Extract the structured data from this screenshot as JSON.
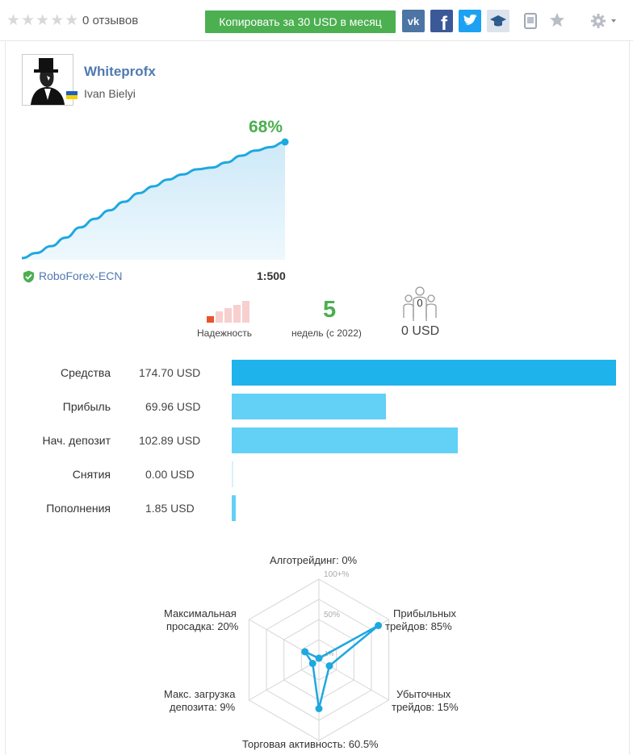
{
  "header": {
    "rating_stars": 5,
    "reviews_label": "0 отзывов",
    "copy_button": "Копировать за 30 USD в месяц",
    "social": [
      {
        "icon": "vk-icon",
        "label": "vk",
        "color": "#4c75a3"
      },
      {
        "icon": "facebook-icon",
        "label": "f",
        "color": "#3b5998"
      },
      {
        "icon": "twitter-icon",
        "label": "t",
        "color": "#1da1f2"
      }
    ]
  },
  "profile": {
    "username": "Whiteprofx",
    "real_name": "Ivan Bielyi",
    "country_flag": "ukraine-flag"
  },
  "growth": {
    "gain": "68%",
    "values": [
      0,
      3,
      7,
      12,
      18,
      23,
      28,
      33,
      38,
      42,
      46,
      49,
      52,
      53,
      56,
      60,
      63,
      65,
      68
    ],
    "broker": "RoboForex-ECN",
    "leverage": "1:500",
    "line_color": "#1ea8e0"
  },
  "stats": {
    "reliability_label": "Надежность",
    "reliability_level": 1,
    "weeks_value": "5",
    "weeks_label": "недель (с 2022)",
    "subscribers_count": "0",
    "subscribers_funds": "0 USD"
  },
  "balance": [
    {
      "label": "Средства",
      "value": "174.70 USD",
      "amount": 174.7,
      "color": "#1fb3ec"
    },
    {
      "label": "Прибыль",
      "value": "69.96 USD",
      "amount": 69.96,
      "color": "#63d0f6"
    },
    {
      "label": "Нач. депозит",
      "value": "102.89 USD",
      "amount": 102.89,
      "color": "#63d0f6"
    },
    {
      "label": "Снятия",
      "value": "0.00 USD",
      "amount": 0.0,
      "color": "#63d0f6"
    },
    {
      "label": "Пополнения",
      "value": "1.85 USD",
      "amount": 1.85,
      "color": "#63d0f6"
    }
  ],
  "radar": {
    "scale_labels": [
      "100+%",
      "50%",
      "1%"
    ],
    "axes": [
      {
        "label1": "Алготрейдинг: 0%",
        "label2": "",
        "value": 0
      },
      {
        "label1": "Прибыльных",
        "label2": "трейдов: 85%",
        "value": 85
      },
      {
        "label1": "Убыточных",
        "label2": "трейдов: 15%",
        "value": 15
      },
      {
        "label1": "Торговая активность: 60.5%",
        "label2": "",
        "value": 60.5
      },
      {
        "label1": "Макс. загрузка",
        "label2": "депозита: 9%",
        "value": 9
      },
      {
        "label1": "Максимальная",
        "label2": "просадка: 20%",
        "value": 20
      }
    ],
    "color": "#1ea8e0"
  }
}
